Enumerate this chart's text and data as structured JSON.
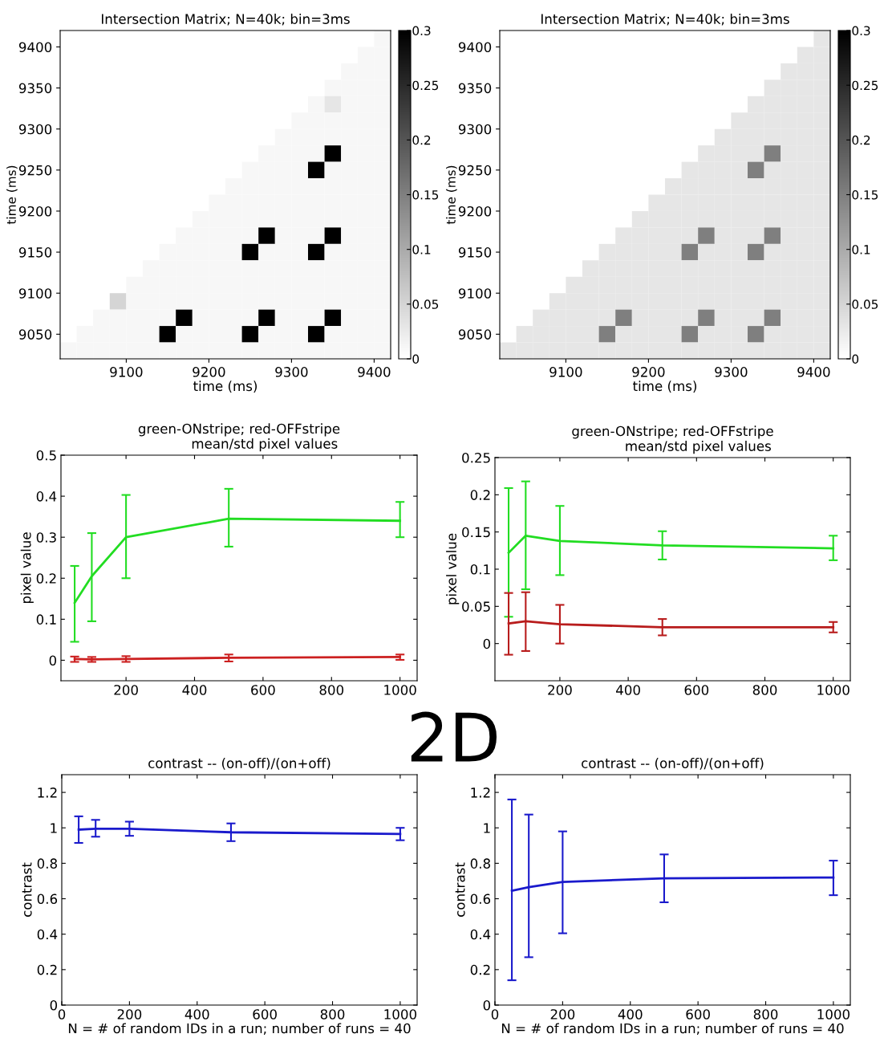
{
  "chart_data": [
    {
      "type": "heatmap",
      "title": "Intersection Matrix; N=40k; bin=3ms",
      "xlabel": "time (ms)",
      "ylabel": "time (ms)",
      "x": [
        9030,
        9050,
        9070,
        9090,
        9110,
        9130,
        9150,
        9170,
        9190,
        9210,
        9230,
        9250,
        9270,
        9290,
        9310,
        9330,
        9350,
        9370,
        9390,
        9410
      ],
      "y": [
        9410,
        9390,
        9370,
        9350,
        9330,
        9310,
        9290,
        9270,
        9250,
        9230,
        9210,
        9190,
        9170,
        9150,
        9130,
        9110,
        9090,
        9070,
        9050,
        9030
      ],
      "xlim": [
        9020,
        9420
      ],
      "ylim": [
        9020,
        9420
      ],
      "xticks": [
        9100,
        9200,
        9300,
        9400
      ],
      "yticks": [
        9050,
        9100,
        9150,
        9200,
        9250,
        9300,
        9350,
        9400
      ],
      "clim": [
        0,
        0.3
      ],
      "cticks": [
        0,
        0.05,
        0.1,
        0.15,
        0.2,
        0.25,
        0.3
      ],
      "cells": [
        [
          0,
          0,
          0,
          0,
          0,
          0,
          0,
          0,
          0,
          0,
          0,
          0,
          0,
          0,
          0,
          0,
          0,
          0,
          0,
          0.01
        ],
        [
          0,
          0,
          0,
          0,
          0,
          0,
          0,
          0,
          0,
          0,
          0,
          0,
          0,
          0,
          0,
          0,
          0,
          0,
          0.01,
          0.01
        ],
        [
          0,
          0,
          0,
          0,
          0,
          0,
          0,
          0,
          0,
          0,
          0,
          0,
          0,
          0,
          0,
          0,
          0,
          0.01,
          0.01,
          0.01
        ],
        [
          0,
          0,
          0,
          0,
          0,
          0,
          0,
          0,
          0,
          0,
          0,
          0,
          0,
          0,
          0,
          0,
          0.01,
          0.01,
          0.01,
          0.01
        ],
        [
          0,
          0,
          0,
          0,
          0,
          0,
          0,
          0,
          0,
          0,
          0,
          0,
          0,
          0,
          0,
          0.01,
          0.03,
          0.01,
          0.01,
          0.01
        ],
        [
          0,
          0,
          0,
          0,
          0,
          0,
          0,
          0,
          0,
          0,
          0,
          0,
          0,
          0,
          0.01,
          0.01,
          0.01,
          0.01,
          0.01,
          0.01
        ],
        [
          0,
          0,
          0,
          0,
          0,
          0,
          0,
          0,
          0,
          0,
          0,
          0,
          0,
          0.01,
          0.01,
          0.01,
          0.01,
          0.01,
          0.01,
          0.01
        ],
        [
          0,
          0,
          0,
          0,
          0,
          0,
          0,
          0,
          0,
          0,
          0,
          0,
          0.01,
          0.01,
          0.01,
          0.01,
          0.3,
          0.01,
          0.01,
          0.01
        ],
        [
          0,
          0,
          0,
          0,
          0,
          0,
          0,
          0,
          0,
          0,
          0,
          0.01,
          0.01,
          0.01,
          0.01,
          0.3,
          0.01,
          0.01,
          0.01,
          0.01
        ],
        [
          0,
          0,
          0,
          0,
          0,
          0,
          0,
          0,
          0,
          0,
          0.01,
          0.01,
          0.01,
          0.01,
          0.01,
          0.01,
          0.01,
          0.01,
          0.01,
          0.01
        ],
        [
          0,
          0,
          0,
          0,
          0,
          0,
          0,
          0,
          0,
          0.01,
          0.01,
          0.01,
          0.01,
          0.01,
          0.01,
          0.01,
          0.01,
          0.01,
          0.01,
          0.01
        ],
        [
          0,
          0,
          0,
          0,
          0,
          0,
          0,
          0,
          0.01,
          0.01,
          0.01,
          0.01,
          0.01,
          0.01,
          0.01,
          0.01,
          0.01,
          0.01,
          0.01,
          0.01
        ],
        [
          0,
          0,
          0,
          0,
          0,
          0,
          0,
          0.01,
          0.01,
          0.01,
          0.01,
          0.01,
          0.3,
          0.01,
          0.01,
          0.01,
          0.3,
          0.01,
          0.01,
          0.01
        ],
        [
          0,
          0,
          0,
          0,
          0,
          0,
          0.01,
          0.01,
          0.01,
          0.01,
          0.01,
          0.3,
          0.01,
          0.01,
          0.01,
          0.3,
          0.01,
          0.01,
          0.01,
          0.01
        ],
        [
          0,
          0,
          0,
          0,
          0,
          0.01,
          0.01,
          0.01,
          0.01,
          0.01,
          0.01,
          0.01,
          0.01,
          0.01,
          0.01,
          0.01,
          0.01,
          0.01,
          0.01,
          0.01
        ],
        [
          0,
          0,
          0,
          0,
          0.01,
          0.01,
          0.01,
          0.01,
          0.01,
          0.01,
          0.01,
          0.01,
          0.01,
          0.01,
          0.01,
          0.01,
          0.01,
          0.01,
          0.01,
          0.01
        ],
        [
          0,
          0,
          0,
          0.05,
          0.01,
          0.01,
          0.01,
          0.01,
          0.01,
          0.01,
          0.01,
          0.01,
          0.01,
          0.01,
          0.01,
          0.01,
          0.01,
          0.01,
          0.01,
          0.01
        ],
        [
          0,
          0,
          0.01,
          0.01,
          0.01,
          0.01,
          0.01,
          0.3,
          0.01,
          0.01,
          0.01,
          0.01,
          0.3,
          0.01,
          0.01,
          0.01,
          0.3,
          0.01,
          0.01,
          0.01
        ],
        [
          0,
          0.01,
          0.01,
          0.01,
          0.01,
          0.01,
          0.3,
          0.01,
          0.01,
          0.01,
          0.01,
          0.3,
          0.01,
          0.01,
          0.01,
          0.3,
          0.01,
          0.01,
          0.01,
          0.01
        ],
        [
          0.01,
          0.01,
          0.01,
          0.01,
          0.01,
          0.01,
          0.01,
          0.01,
          0.01,
          0.01,
          0.01,
          0.01,
          0.01,
          0.01,
          0.01,
          0.01,
          0.01,
          0.01,
          0.01,
          0.01
        ]
      ]
    },
    {
      "type": "heatmap",
      "title": "Intersection Matrix; N=40k; bin=3ms",
      "xlabel": "time (ms)",
      "ylabel": "time (ms)",
      "x": [
        9030,
        9050,
        9070,
        9090,
        9110,
        9130,
        9150,
        9170,
        9190,
        9210,
        9230,
        9250,
        9270,
        9290,
        9310,
        9330,
        9350,
        9370,
        9390,
        9410
      ],
      "y": [
        9410,
        9390,
        9370,
        9350,
        9330,
        9310,
        9290,
        9270,
        9250,
        9230,
        9210,
        9190,
        9170,
        9150,
        9130,
        9110,
        9090,
        9070,
        9050,
        9030
      ],
      "xlim": [
        9020,
        9420
      ],
      "ylim": [
        9020,
        9420
      ],
      "xticks": [
        9100,
        9200,
        9300,
        9400
      ],
      "yticks": [
        9050,
        9100,
        9150,
        9200,
        9250,
        9300,
        9350,
        9400
      ],
      "clim": [
        0,
        0.3
      ],
      "cticks": [
        0,
        0.05,
        0.1,
        0.15,
        0.2,
        0.25,
        0.3
      ],
      "cells": [
        [
          0,
          0,
          0,
          0,
          0,
          0,
          0,
          0,
          0,
          0,
          0,
          0,
          0,
          0,
          0,
          0,
          0,
          0,
          0,
          0.03
        ],
        [
          0,
          0,
          0,
          0,
          0,
          0,
          0,
          0,
          0,
          0,
          0,
          0,
          0,
          0,
          0,
          0,
          0,
          0,
          0.03,
          0.03
        ],
        [
          0,
          0,
          0,
          0,
          0,
          0,
          0,
          0,
          0,
          0,
          0,
          0,
          0,
          0,
          0,
          0,
          0,
          0.03,
          0.03,
          0.03
        ],
        [
          0,
          0,
          0,
          0,
          0,
          0,
          0,
          0,
          0,
          0,
          0,
          0,
          0,
          0,
          0,
          0,
          0.03,
          0.03,
          0.03,
          0.03
        ],
        [
          0,
          0,
          0,
          0,
          0,
          0,
          0,
          0,
          0,
          0,
          0,
          0,
          0,
          0,
          0,
          0.03,
          0.03,
          0.03,
          0.03,
          0.03
        ],
        [
          0,
          0,
          0,
          0,
          0,
          0,
          0,
          0,
          0,
          0,
          0,
          0,
          0,
          0,
          0.03,
          0.03,
          0.03,
          0.03,
          0.03,
          0.03
        ],
        [
          0,
          0,
          0,
          0,
          0,
          0,
          0,
          0,
          0,
          0,
          0,
          0,
          0,
          0.03,
          0.03,
          0.03,
          0.03,
          0.03,
          0.03,
          0.03
        ],
        [
          0,
          0,
          0,
          0,
          0,
          0,
          0,
          0,
          0,
          0,
          0,
          0,
          0.03,
          0.03,
          0.03,
          0.03,
          0.15,
          0.03,
          0.03,
          0.03
        ],
        [
          0,
          0,
          0,
          0,
          0,
          0,
          0,
          0,
          0,
          0,
          0,
          0.03,
          0.03,
          0.03,
          0.03,
          0.15,
          0.03,
          0.03,
          0.03,
          0.03
        ],
        [
          0,
          0,
          0,
          0,
          0,
          0,
          0,
          0,
          0,
          0,
          0.03,
          0.03,
          0.03,
          0.03,
          0.03,
          0.03,
          0.03,
          0.03,
          0.03,
          0.03
        ],
        [
          0,
          0,
          0,
          0,
          0,
          0,
          0,
          0,
          0,
          0.03,
          0.03,
          0.03,
          0.03,
          0.03,
          0.03,
          0.03,
          0.03,
          0.03,
          0.03,
          0.03
        ],
        [
          0,
          0,
          0,
          0,
          0,
          0,
          0,
          0,
          0.03,
          0.03,
          0.03,
          0.03,
          0.03,
          0.03,
          0.03,
          0.03,
          0.03,
          0.03,
          0.03,
          0.03
        ],
        [
          0,
          0,
          0,
          0,
          0,
          0,
          0,
          0.03,
          0.03,
          0.03,
          0.03,
          0.03,
          0.15,
          0.03,
          0.03,
          0.03,
          0.15,
          0.03,
          0.03,
          0.03
        ],
        [
          0,
          0,
          0,
          0,
          0,
          0,
          0.03,
          0.03,
          0.03,
          0.03,
          0.03,
          0.15,
          0.03,
          0.03,
          0.03,
          0.15,
          0.03,
          0.03,
          0.03,
          0.03
        ],
        [
          0,
          0,
          0,
          0,
          0,
          0.03,
          0.03,
          0.03,
          0.03,
          0.03,
          0.03,
          0.03,
          0.03,
          0.03,
          0.03,
          0.03,
          0.03,
          0.03,
          0.03,
          0.03
        ],
        [
          0,
          0,
          0,
          0,
          0.03,
          0.03,
          0.03,
          0.03,
          0.03,
          0.03,
          0.03,
          0.03,
          0.03,
          0.03,
          0.03,
          0.03,
          0.03,
          0.03,
          0.03,
          0.03
        ],
        [
          0,
          0,
          0,
          0.03,
          0.03,
          0.03,
          0.03,
          0.03,
          0.03,
          0.03,
          0.03,
          0.03,
          0.03,
          0.03,
          0.03,
          0.03,
          0.03,
          0.03,
          0.03,
          0.03
        ],
        [
          0,
          0,
          0.03,
          0.03,
          0.03,
          0.03,
          0.03,
          0.15,
          0.03,
          0.03,
          0.03,
          0.03,
          0.15,
          0.03,
          0.03,
          0.03,
          0.15,
          0.03,
          0.03,
          0.03
        ],
        [
          0,
          0.03,
          0.03,
          0.03,
          0.03,
          0.03,
          0.15,
          0.03,
          0.03,
          0.03,
          0.03,
          0.15,
          0.03,
          0.03,
          0.03,
          0.15,
          0.03,
          0.03,
          0.03,
          0.03
        ],
        [
          0.03,
          0.03,
          0.03,
          0.03,
          0.03,
          0.03,
          0.03,
          0.03,
          0.03,
          0.03,
          0.03,
          0.03,
          0.03,
          0.03,
          0.03,
          0.03,
          0.03,
          0.03,
          0.03,
          0.03
        ]
      ]
    },
    {
      "type": "line",
      "title": "green-ONstripe; red-OFFstripe",
      "subtitle": "mean/std pixel values",
      "ylabel": "pixel value",
      "annotations": [
        "2D"
      ],
      "x": [
        50,
        100,
        200,
        500,
        1000
      ],
      "xlim": [
        10,
        1050
      ],
      "ylim": [
        -0.05,
        0.5
      ],
      "xticks": [
        200,
        400,
        600,
        800,
        1000
      ],
      "yticks": [
        0,
        0.1,
        0.2,
        0.3,
        0.4,
        0.5
      ],
      "series": [
        {
          "color": "#22dd22",
          "values": [
            0.14,
            0.205,
            0.3,
            0.345,
            0.34
          ],
          "errors": [
            [
              0.045,
              0.23
            ],
            [
              0.095,
              0.31
            ],
            [
              0.2,
              0.403
            ],
            [
              0.277,
              0.418
            ],
            [
              0.3,
              0.386
            ]
          ]
        },
        {
          "color": "#cc2020",
          "values": [
            0.003,
            0.002,
            0.003,
            0.006,
            0.008
          ],
          "errors": [
            [
              -0.004,
              0.009
            ],
            [
              -0.004,
              0.008
            ],
            [
              -0.004,
              0.01
            ],
            [
              -0.003,
              0.014
            ],
            [
              0.001,
              0.014
            ]
          ]
        }
      ]
    },
    {
      "type": "line",
      "title": "green-ONstripe; red-OFFstripe",
      "subtitle": "mean/std pixel values",
      "ylabel": "pixel value",
      "x": [
        50,
        100,
        200,
        500,
        1000
      ],
      "xlim": [
        10,
        1050
      ],
      "ylim": [
        -0.05,
        0.25
      ],
      "xticks": [
        200,
        400,
        600,
        800,
        1000
      ],
      "yticks": [
        0,
        0.05,
        0.1,
        0.15,
        0.2,
        0.25
      ],
      "series": [
        {
          "color": "#22dd22",
          "values": [
            0.122,
            0.145,
            0.138,
            0.132,
            0.128
          ],
          "errors": [
            [
              0.036,
              0.209
            ],
            [
              0.073,
              0.218
            ],
            [
              0.092,
              0.185
            ],
            [
              0.113,
              0.151
            ],
            [
              0.112,
              0.145
            ]
          ]
        },
        {
          "color": "#b81c1c",
          "values": [
            0.027,
            0.03,
            0.026,
            0.022,
            0.022
          ],
          "errors": [
            [
              -0.015,
              0.068
            ],
            [
              -0.01,
              0.069
            ],
            [
              0,
              0.052
            ],
            [
              0.011,
              0.033
            ],
            [
              0.015,
              0.029
            ]
          ]
        }
      ]
    },
    {
      "type": "line",
      "title": "contrast -- (on-off)/(on+off)",
      "xlabel": "N = # of random IDs in a run; number of runs = 40",
      "ylabel": "contrast",
      "x": [
        50,
        100,
        200,
        500,
        1000
      ],
      "xlim": [
        0,
        1050
      ],
      "ylim": [
        0,
        1.3
      ],
      "xticks": [
        0,
        200,
        400,
        600,
        800,
        1000
      ],
      "yticks": [
        0,
        0.2,
        0.4,
        0.6,
        0.8,
        1,
        1.2
      ],
      "series": [
        {
          "color": "#1a1acc",
          "values": [
            0.99,
            0.995,
            0.995,
            0.975,
            0.965
          ],
          "errors": [
            [
              0.915,
              1.065
            ],
            [
              0.95,
              1.045
            ],
            [
              0.955,
              1.035
            ],
            [
              0.925,
              1.025
            ],
            [
              0.93,
              1.0
            ]
          ]
        }
      ]
    },
    {
      "type": "line",
      "title": "contrast -- (on-off)/(on+off)",
      "xlabel": "N = # of random IDs in a run; number of runs = 40",
      "ylabel": "contrast",
      "x": [
        50,
        100,
        200,
        500,
        1000
      ],
      "xlim": [
        0,
        1050
      ],
      "ylim": [
        0,
        1.3
      ],
      "xticks": [
        0,
        200,
        400,
        600,
        800,
        1000
      ],
      "yticks": [
        0,
        0.2,
        0.4,
        0.6,
        0.8,
        1,
        1.2
      ],
      "series": [
        {
          "color": "#1a1acc",
          "values": [
            0.645,
            0.665,
            0.695,
            0.715,
            0.72
          ],
          "errors": [
            [
              0.14,
              1.16
            ],
            [
              0.27,
              1.075
            ],
            [
              0.405,
              0.98
            ],
            [
              0.58,
              0.85
            ],
            [
              0.62,
              0.815
            ]
          ]
        }
      ]
    }
  ]
}
